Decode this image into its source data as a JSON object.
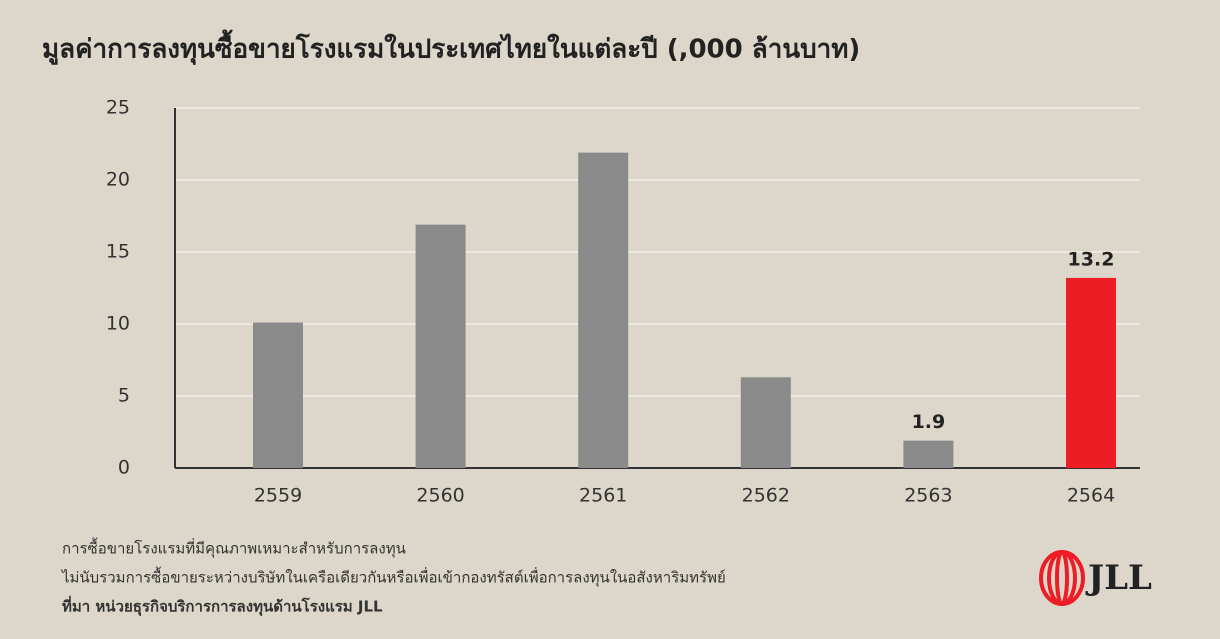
{
  "chart_data": {
    "type": "bar",
    "title": "มูลค่าการลงทุนซื้อขายโรงแรมในประเทศไทยในแต่ละปี (,000 ล้านบาท)",
    "categories": [
      "2559",
      "2560",
      "2561",
      "2562",
      "2563",
      "2564"
    ],
    "values": [
      10.1,
      16.9,
      21.9,
      6.3,
      1.9,
      13.2
    ],
    "value_labels": [
      null,
      null,
      null,
      null,
      "1.9",
      "13.2"
    ],
    "colors": [
      "#8a8a8a",
      "#8a8a8a",
      "#8a8a8a",
      "#8a8a8a",
      "#8a8a8a",
      "#ee1c25"
    ],
    "ylim": [
      0,
      25
    ],
    "yticks": [
      0,
      5,
      10,
      15,
      20,
      25
    ],
    "grid": true
  },
  "notes": [
    "การซื้อขายโรงแรมที่มีคุณภาพเหมาะสำหรับการลงทุน",
    "ไม่นับรวมการซื้อขายระหว่างบริษัทในเครือเดียวกันหรือเพื่อเข้ากองทรัสต์เพื่อการลงทุนในอสังหาริมทรัพย์"
  ],
  "source": "ที่มา หน่วยธุรกิจบริการการลงทุนด้านโรงแรม JLL",
  "logo": "JLL"
}
